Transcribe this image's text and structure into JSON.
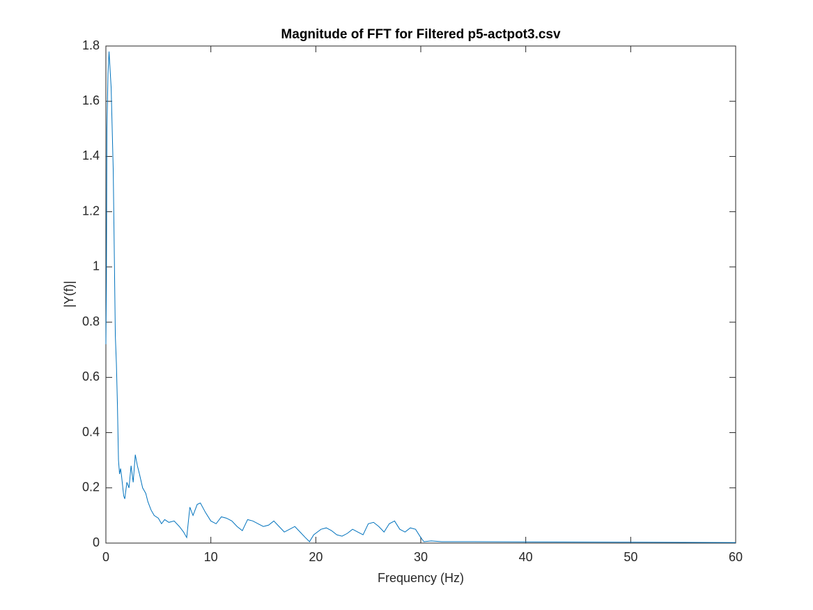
{
  "chart_data": {
    "type": "line",
    "title": "Magnitude of FFT for Filtered p5-actpot3.csv",
    "x_label": "Frequency (Hz)",
    "y_label": "|Y(f)|",
    "x": [
      0,
      0.05,
      0.1,
      0.2,
      0.3,
      0.5,
      0.7,
      0.9,
      1.0,
      1.1,
      1.2,
      1.3,
      1.4,
      1.5,
      1.7,
      1.8,
      2.0,
      2.2,
      2.4,
      2.6,
      2.8,
      3.0,
      3.2,
      3.5,
      3.8,
      4.0,
      4.3,
      4.6,
      5.0,
      5.3,
      5.6,
      6.0,
      6.5,
      7.0,
      7.4,
      7.7,
      8.0,
      8.3,
      8.7,
      9.0,
      9.5,
      10.0,
      10.5,
      11.0,
      11.5,
      12.0,
      12.5,
      13.0,
      13.5,
      14.0,
      14.5,
      15.0,
      15.5,
      16.0,
      16.5,
      17.0,
      17.5,
      18.0,
      18.5,
      19.0,
      19.4,
      19.8,
      20.5,
      21.0,
      21.5,
      22.0,
      22.5,
      23.0,
      23.5,
      24.0,
      24.5,
      25.0,
      25.5,
      26.0,
      26.5,
      27.0,
      27.5,
      28.0,
      28.5,
      29.0,
      29.5,
      30.0,
      30.3,
      31,
      32,
      35,
      40,
      50,
      60
    ],
    "series": [
      {
        "name": "|Y(f)|",
        "color": "#0072bd",
        "values": [
          0.72,
          0.95,
          1.5,
          1.7,
          1.78,
          1.65,
          1.35,
          0.75,
          0.65,
          0.5,
          0.3,
          0.25,
          0.27,
          0.24,
          0.17,
          0.16,
          0.22,
          0.2,
          0.28,
          0.22,
          0.32,
          0.28,
          0.25,
          0.2,
          0.18,
          0.15,
          0.12,
          0.1,
          0.09,
          0.07,
          0.085,
          0.075,
          0.08,
          0.06,
          0.04,
          0.02,
          0.13,
          0.1,
          0.14,
          0.145,
          0.11,
          0.08,
          0.07,
          0.095,
          0.09,
          0.08,
          0.06,
          0.045,
          0.085,
          0.08,
          0.07,
          0.06,
          0.065,
          0.08,
          0.06,
          0.04,
          0.05,
          0.06,
          0.04,
          0.02,
          0.005,
          0.03,
          0.05,
          0.055,
          0.045,
          0.03,
          0.025,
          0.035,
          0.05,
          0.04,
          0.03,
          0.07,
          0.075,
          0.06,
          0.04,
          0.07,
          0.08,
          0.05,
          0.04,
          0.055,
          0.05,
          0.02,
          0.005,
          0.008,
          0.005,
          0.005,
          0.004,
          0.003,
          0.002
        ]
      }
    ],
    "xlim": [
      0,
      60
    ],
    "xticks": [
      0,
      10,
      20,
      30,
      40,
      50,
      60
    ],
    "ylim": [
      0,
      1.8
    ],
    "yticks": [
      0,
      0.2,
      0.4,
      0.6,
      0.8,
      1,
      1.2,
      1.4,
      1.6,
      1.8
    ]
  }
}
